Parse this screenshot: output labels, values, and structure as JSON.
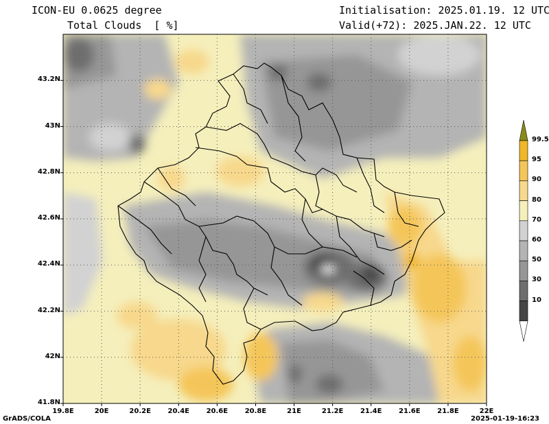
{
  "header": {
    "model": "ICON-EU 0.0625 degree",
    "variable": "Total Clouds  [ %]",
    "init": "Initialisation: 2025.01.19. 12 UTC",
    "valid": "Valid(+72): 2025.JAN.22. 12 UTC"
  },
  "axes": {
    "lat_labels": [
      "43.2N",
      "43N",
      "42.8N",
      "42.6N",
      "42.4N",
      "42.2N",
      "42N",
      "41.8N"
    ],
    "lon_labels": [
      "19.8E",
      "20E",
      "20.2E",
      "20.4E",
      "20.6E",
      "20.8E",
      "21E",
      "21.2E",
      "21.4E",
      "21.6E",
      "21.8E",
      "22E"
    ],
    "lat_range": [
      41.8,
      43.4
    ],
    "lon_range": [
      19.8,
      22.0
    ]
  },
  "colorbar": {
    "labels": [
      "99.5",
      "95",
      "90",
      "80",
      "70",
      "60",
      "50",
      "30",
      "10"
    ],
    "colors": [
      "#f0b828",
      "#f4c65a",
      "#f7d88c",
      "#f5efbc",
      "#d2d2d2",
      "#b4b4b4",
      "#969696",
      "#6e6e6e",
      "#464646"
    ],
    "over_color": "#8a8a1a",
    "under_color": "#ffffff"
  },
  "footer": {
    "left": "GrADS/COLA",
    "right": "2025-01-19-16:23"
  }
}
